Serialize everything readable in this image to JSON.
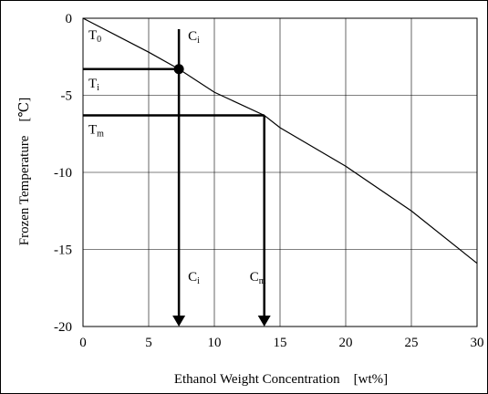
{
  "chart_data": {
    "type": "line",
    "xlabel": "Ethanol Weight Concentration　[wt%]",
    "ylabel": "Frozen Temperature　[℃]",
    "xlim": [
      0,
      30
    ],
    "ylim": [
      -20,
      0
    ],
    "xticks": [
      0,
      5,
      10,
      15,
      20,
      25,
      30
    ],
    "yticks": [
      0,
      -5,
      -10,
      -15,
      -20
    ],
    "grid": true,
    "series": [
      {
        "x": [
          0,
          5,
          7.3,
          10,
          13.8,
          15,
          20,
          25,
          30
        ],
        "y": [
          0,
          -2.2,
          -3.3,
          -4.8,
          -6.3,
          -7.1,
          -9.6,
          -12.5,
          -15.9
        ]
      }
    ],
    "annotations": {
      "T0": {
        "main": "T",
        "sub": "0",
        "y": 0
      },
      "Ti": {
        "main": "T",
        "sub": "i",
        "y": -3.3
      },
      "Tm": {
        "main": "T",
        "sub": "m",
        "y": -6.3
      },
      "Ci": {
        "main": "C",
        "sub": "i",
        "x": 7.3
      },
      "Cm": {
        "main": "C",
        "sub": "m",
        "x": 13.8
      }
    }
  }
}
